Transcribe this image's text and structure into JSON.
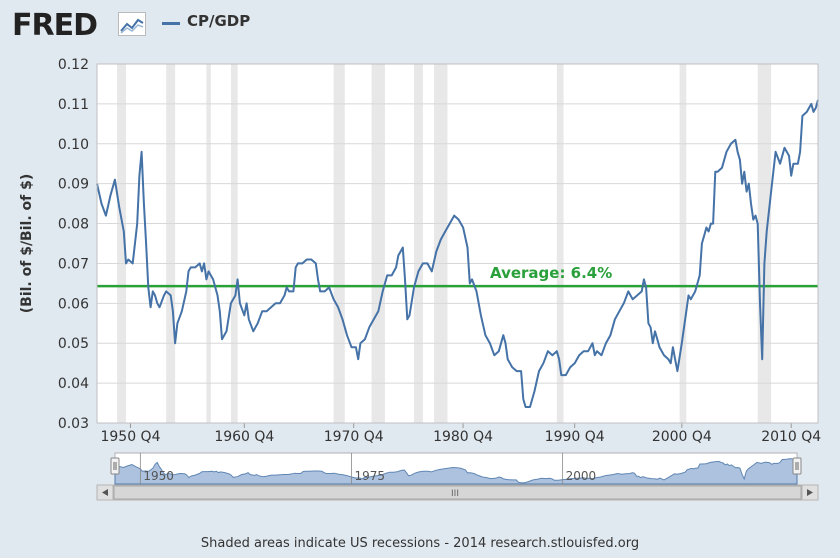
{
  "logo_text": "FRED",
  "footer_text": "Shaded areas indicate US recessions - 2014 research.stlouisfed.org",
  "colors": {
    "series": "#4572a7",
    "average": "#2aa03a",
    "recession": "#e8e8e8",
    "background": "#e1e9f0",
    "plot": "#ffffff"
  },
  "chart_data": {
    "type": "line",
    "series": [
      {
        "name": "CP/GDP",
        "points": [
          [
            1947.0,
            0.09
          ],
          [
            1947.5,
            0.085
          ],
          [
            1948.0,
            0.082
          ],
          [
            1948.5,
            0.087
          ],
          [
            1949.0,
            0.091
          ],
          [
            1949.5,
            0.084
          ],
          [
            1950.0,
            0.078
          ],
          [
            1950.25,
            0.07
          ],
          [
            1950.5,
            0.071
          ],
          [
            1951.0,
            0.07
          ],
          [
            1951.5,
            0.08
          ],
          [
            1951.75,
            0.092
          ],
          [
            1952.0,
            0.098
          ],
          [
            1952.25,
            0.085
          ],
          [
            1952.5,
            0.075
          ],
          [
            1952.75,
            0.064
          ],
          [
            1953.0,
            0.059
          ],
          [
            1953.25,
            0.063
          ],
          [
            1953.5,
            0.062
          ],
          [
            1953.75,
            0.06
          ],
          [
            1954.0,
            0.059
          ],
          [
            1954.5,
            0.062
          ],
          [
            1954.75,
            0.063
          ],
          [
            1955.25,
            0.062
          ],
          [
            1955.5,
            0.058
          ],
          [
            1955.75,
            0.05
          ],
          [
            1956.0,
            0.055
          ],
          [
            1956.5,
            0.058
          ],
          [
            1957.0,
            0.063
          ],
          [
            1957.25,
            0.068
          ],
          [
            1957.5,
            0.069
          ],
          [
            1958.0,
            0.069
          ],
          [
            1958.5,
            0.07
          ],
          [
            1958.75,
            0.068
          ],
          [
            1959.0,
            0.07
          ],
          [
            1959.25,
            0.066
          ],
          [
            1959.5,
            0.068
          ],
          [
            1960.0,
            0.066
          ],
          [
            1960.5,
            0.062
          ],
          [
            1960.75,
            0.058
          ],
          [
            1961.0,
            0.051
          ],
          [
            1961.5,
            0.053
          ],
          [
            1962.0,
            0.06
          ],
          [
            1962.5,
            0.062
          ],
          [
            1962.75,
            0.066
          ],
          [
            1963.0,
            0.06
          ],
          [
            1963.5,
            0.057
          ],
          [
            1963.75,
            0.06
          ],
          [
            1964.0,
            0.056
          ],
          [
            1964.5,
            0.053
          ],
          [
            1965.0,
            0.055
          ],
          [
            1965.5,
            0.058
          ],
          [
            1966.0,
            0.058
          ],
          [
            1966.5,
            0.059
          ],
          [
            1967.0,
            0.06
          ],
          [
            1967.5,
            0.06
          ],
          [
            1968.0,
            0.062
          ],
          [
            1968.25,
            0.064
          ],
          [
            1968.5,
            0.063
          ],
          [
            1969.0,
            0.063
          ],
          [
            1969.25,
            0.069
          ],
          [
            1969.5,
            0.07
          ],
          [
            1970.0,
            0.07
          ],
          [
            1970.5,
            0.071
          ],
          [
            1971.0,
            0.071
          ],
          [
            1971.5,
            0.07
          ],
          [
            1971.75,
            0.066
          ],
          [
            1972.0,
            0.063
          ],
          [
            1972.5,
            0.063
          ],
          [
            1973.0,
            0.064
          ],
          [
            1973.5,
            0.061
          ],
          [
            1974.0,
            0.059
          ],
          [
            1974.5,
            0.056
          ],
          [
            1975.0,
            0.052
          ],
          [
            1975.5,
            0.049
          ],
          [
            1976.0,
            0.049
          ],
          [
            1976.25,
            0.046
          ],
          [
            1976.5,
            0.05
          ],
          [
            1977.0,
            0.051
          ],
          [
            1977.5,
            0.054
          ],
          [
            1978.0,
            0.056
          ],
          [
            1978.5,
            0.058
          ],
          [
            1979.0,
            0.063
          ],
          [
            1979.5,
            0.067
          ],
          [
            1980.0,
            0.067
          ],
          [
            1980.5,
            0.069
          ],
          [
            1980.75,
            0.072
          ],
          [
            1981.0,
            0.073
          ],
          [
            1981.25,
            0.074
          ],
          [
            1981.5,
            0.066
          ],
          [
            1981.75,
            0.056
          ],
          [
            1982.0,
            0.057
          ],
          [
            1982.5,
            0.064
          ],
          [
            1983.0,
            0.068
          ],
          [
            1983.5,
            0.07
          ],
          [
            1984.0,
            0.07
          ],
          [
            1984.5,
            0.068
          ],
          [
            1985.0,
            0.073
          ],
          [
            1985.5,
            0.076
          ],
          [
            1986.0,
            0.078
          ],
          [
            1986.5,
            0.08
          ],
          [
            1987.0,
            0.082
          ],
          [
            1987.5,
            0.081
          ],
          [
            1988.0,
            0.079
          ],
          [
            1988.5,
            0.074
          ],
          [
            1988.75,
            0.065
          ],
          [
            1989.0,
            0.066
          ],
          [
            1989.5,
            0.063
          ],
          [
            1990.0,
            0.057
          ],
          [
            1990.5,
            0.052
          ],
          [
            1991.0,
            0.05
          ],
          [
            1991.5,
            0.047
          ],
          [
            1992.0,
            0.048
          ],
          [
            1992.5,
            0.052
          ],
          [
            1992.75,
            0.05
          ],
          [
            1993.0,
            0.046
          ],
          [
            1993.5,
            0.044
          ],
          [
            1994.0,
            0.043
          ],
          [
            1994.5,
            0.043
          ],
          [
            1994.75,
            0.036
          ],
          [
            1995.0,
            0.034
          ],
          [
            1995.5,
            0.034
          ],
          [
            1996.0,
            0.038
          ],
          [
            1996.5,
            0.043
          ],
          [
            1997.0,
            0.045
          ],
          [
            1997.5,
            0.048
          ],
          [
            1998.0,
            0.047
          ],
          [
            1998.5,
            0.048
          ],
          [
            1998.75,
            0.046
          ],
          [
            1999.0,
            0.042
          ],
          [
            1999.5,
            0.042
          ],
          [
            2000.0,
            0.044
          ],
          [
            2000.5,
            0.045
          ],
          [
            2001.0,
            0.047
          ],
          [
            2001.5,
            0.048
          ],
          [
            2002.0,
            0.048
          ],
          [
            2002.5,
            0.05
          ],
          [
            2002.75,
            0.047
          ],
          [
            2003.0,
            0.048
          ],
          [
            2003.5,
            0.047
          ],
          [
            2004.0,
            0.05
          ],
          [
            2004.5,
            0.052
          ],
          [
            2005.0,
            0.056
          ],
          [
            2005.5,
            0.058
          ],
          [
            2006.0,
            0.06
          ],
          [
            2006.5,
            0.063
          ],
          [
            2007.0,
            0.061
          ],
          [
            2007.5,
            0.062
          ],
          [
            2008.0,
            0.063
          ],
          [
            2008.25,
            0.066
          ],
          [
            2008.5,
            0.064
          ],
          [
            2008.75,
            0.055
          ],
          [
            2009.0,
            0.054
          ],
          [
            2009.25,
            0.05
          ],
          [
            2009.5,
            0.053
          ],
          [
            2009.75,
            0.051
          ],
          [
            2010.0,
            0.049
          ],
          [
            2010.5,
            0.047
          ],
          [
            2011.0,
            0.046
          ],
          [
            2011.25,
            0.045
          ],
          [
            2011.5,
            0.049
          ],
          [
            2011.75,
            0.046
          ],
          [
            2012.0,
            0.043
          ],
          [
            2012.5,
            0.05
          ],
          [
            2013.0,
            0.058
          ],
          [
            2013.25,
            0.062
          ],
          [
            2013.5,
            0.061
          ],
          [
            2014.0,
            0.063
          ],
          [
            2014.5,
            0.067
          ],
          [
            2014.75,
            0.075
          ],
          [
            2015.0,
            0.077
          ],
          [
            2015.25,
            0.079
          ],
          [
            2015.5,
            0.078
          ],
          [
            2015.75,
            0.08
          ],
          [
            2016.0,
            0.08
          ],
          [
            2016.25,
            0.093
          ],
          [
            2016.5,
            0.093
          ],
          [
            2017.0,
            0.094
          ],
          [
            2017.5,
            0.098
          ],
          [
            2018.0,
            0.1
          ],
          [
            2018.5,
            0.101
          ],
          [
            2018.75,
            0.098
          ],
          [
            2019.0,
            0.096
          ],
          [
            2019.25,
            0.09
          ],
          [
            2019.5,
            0.093
          ],
          [
            2019.75,
            0.088
          ],
          [
            2020.0,
            0.09
          ],
          [
            2020.25,
            0.085
          ],
          [
            2020.5,
            0.081
          ],
          [
            2020.75,
            0.082
          ],
          [
            2021.0,
            0.08
          ],
          [
            2021.25,
            0.06
          ],
          [
            2021.5,
            0.046
          ],
          [
            2021.75,
            0.07
          ],
          [
            2022.0,
            0.078
          ],
          [
            2022.5,
            0.088
          ],
          [
            2023.0,
            0.098
          ],
          [
            2023.5,
            0.095
          ],
          [
            2024.0,
            0.099
          ],
          [
            2024.5,
            0.097
          ],
          [
            2024.75,
            0.092
          ],
          [
            2025.0,
            0.095
          ],
          [
            2025.5,
            0.095
          ],
          [
            2025.75,
            0.098
          ],
          [
            2026.0,
            0.107
          ],
          [
            2026.5,
            0.108
          ],
          [
            2027.0,
            0.11
          ],
          [
            2027.25,
            0.108
          ],
          [
            2027.5,
            0.109
          ],
          [
            2027.75,
            0.111
          ]
        ]
      }
    ],
    "ylabel": "(Bil. of $/Bil. of $)",
    "ylim": [
      0.03,
      0.12
    ],
    "yticks": [
      0.03,
      0.04,
      0.05,
      0.06,
      0.07,
      0.08,
      0.09,
      0.1,
      0.11,
      0.12
    ],
    "ytick_labels": [
      "0.03",
      "0.04",
      "0.05",
      "0.06",
      "0.07",
      "0.08",
      "0.09",
      "0.10",
      "0.11",
      "0.12"
    ],
    "xlim": [
      1947.0,
      2027.75
    ],
    "xticks": [
      {
        "value": 1950.75,
        "label": "1950 Q4"
      },
      {
        "value": 1963.5,
        "label": "1960 Q4"
      },
      {
        "value": 1975.75,
        "label": "1970 Q4"
      },
      {
        "value": 1988.0,
        "label": "1980 Q4"
      },
      {
        "value": 2000.5,
        "label": "1990 Q4"
      },
      {
        "value": 2012.5,
        "label": "2000 Q4"
      },
      {
        "value": 2024.75,
        "label": "2010 Q4"
      }
    ],
    "recessions": [
      [
        1949.25,
        1950.25
      ],
      [
        1954.75,
        1955.75
      ],
      [
        1959.25,
        1959.75
      ],
      [
        1962.0,
        1962.75
      ],
      [
        1973.5,
        1974.75
      ],
      [
        1977.75,
        1979.25
      ],
      [
        1982.5,
        1983.5
      ],
      [
        1984.75,
        1986.25
      ],
      [
        1998.5,
        1999.25
      ],
      [
        2012.25,
        2013.0
      ],
      [
        2021.0,
        2022.5
      ]
    ],
    "average": {
      "value": 0.0643,
      "label": "Average: 6.4%"
    },
    "navigator": {
      "labels": [
        {
          "value": 1950,
          "label": "1950"
        },
        {
          "value": 1975,
          "label": "1975"
        },
        {
          "value": 2000,
          "label": "2000"
        }
      ],
      "xlim": [
        1947.0,
        2027.75
      ],
      "scroll_label": "III"
    }
  }
}
